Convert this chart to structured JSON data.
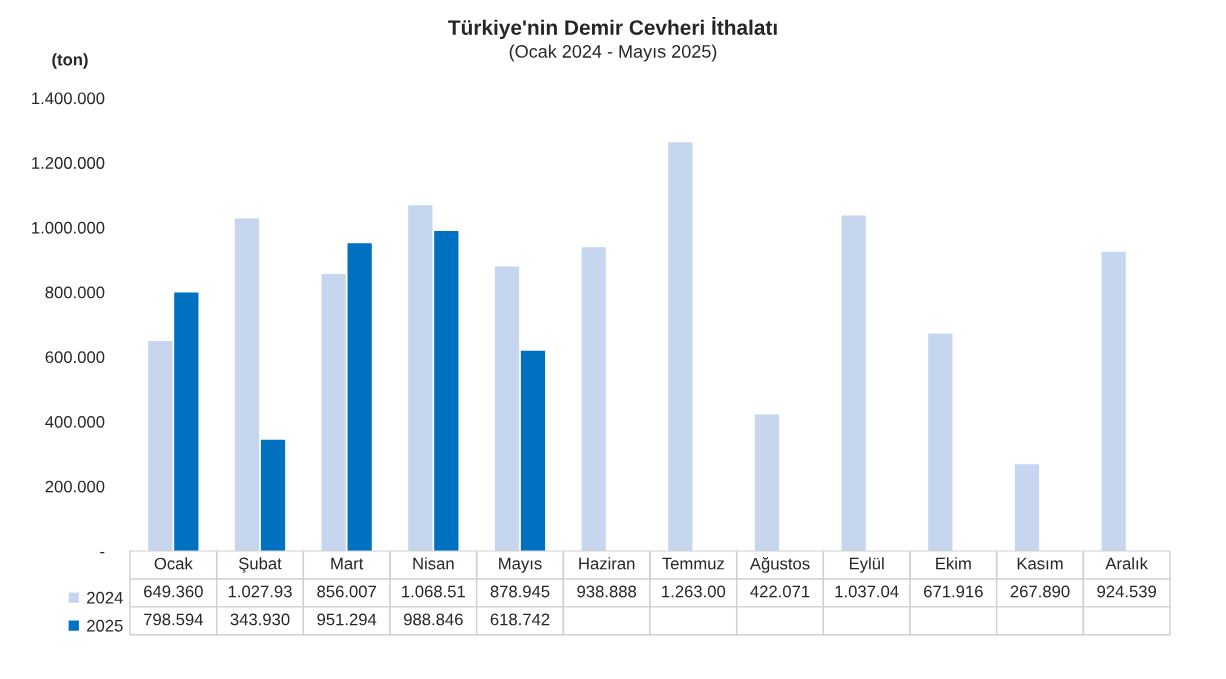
{
  "chart_data": {
    "type": "bar",
    "title": "Türkiye'nin Demir Cevheri İthalatı",
    "subtitle": "(Ocak 2024 - Mayıs 2025)",
    "ylabel": "(ton)",
    "categories": [
      "Ocak",
      "Şubat",
      "Mart",
      "Nisan",
      "Mayıs",
      "Haziran",
      "Temmuz",
      "Ağustos",
      "Eylül",
      "Ekim",
      "Kasım",
      "Aralık"
    ],
    "series": [
      {
        "name": "2024",
        "color": "#c6d6ee",
        "values": [
          649360,
          1027930,
          856007,
          1068510,
          878945,
          938888,
          1263000,
          422071,
          1037040,
          671916,
          267890,
          924539
        ],
        "value_labels": [
          "649.360",
          "1.027.93",
          "856.007",
          "1.068.51",
          "878.945",
          "938.888",
          "1.263.00",
          "422.071",
          "1.037.04",
          "671.916",
          "267.890",
          "924.539"
        ]
      },
      {
        "name": "2025",
        "color": "#0070c0",
        "values": [
          798594,
          343930,
          951294,
          988846,
          618742,
          null,
          null,
          null,
          null,
          null,
          null,
          null
        ],
        "value_labels": [
          "798.594",
          "343.930",
          "951.294",
          "988.846",
          "618.742",
          null,
          null,
          null,
          null,
          null,
          null,
          null
        ]
      }
    ],
    "ylim": [
      0,
      1400000
    ],
    "yticks": [
      {
        "value": 0,
        "label": "-"
      },
      {
        "value": 200000,
        "label": "200.000"
      },
      {
        "value": 400000,
        "label": "400.000"
      },
      {
        "value": 600000,
        "label": "600.000"
      },
      {
        "value": 800000,
        "label": "800.000"
      },
      {
        "value": 1000000,
        "label": "1.000.000"
      },
      {
        "value": 1200000,
        "label": "1.200.000"
      },
      {
        "value": 1400000,
        "label": "1.400.000"
      }
    ],
    "legend": "bottom left"
  }
}
